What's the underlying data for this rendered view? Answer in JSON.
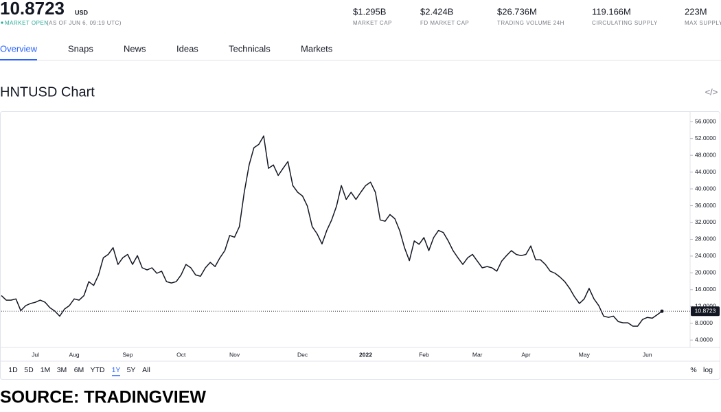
{
  "header": {
    "price": "10.8723",
    "currency": "USD",
    "status": "MARKET OPEN",
    "as_of": "(AS OF JUN 6, 09:19 UTC)"
  },
  "stats": [
    {
      "value": "$1.295B",
      "label": "MARKET CAP"
    },
    {
      "value": "$2.424B",
      "label": "FD MARKET CAP"
    },
    {
      "value": "$26.736M",
      "label": "TRADING VOLUME 24H"
    },
    {
      "value": "119.166M",
      "label": "CIRCULATING SUPPLY"
    },
    {
      "value": "223M",
      "label": "MAX SUPPLY"
    }
  ],
  "tabs": [
    "Overview",
    "Snaps",
    "News",
    "Ideas",
    "Technicals",
    "Markets"
  ],
  "chart_title": "HNTUSD Chart",
  "chart_data": {
    "type": "line",
    "color": "#131722",
    "categories": [
      null,
      null,
      null,
      null,
      null,
      null,
      null,
      "Jul",
      null,
      null,
      null,
      null,
      null,
      null,
      null,
      "Aug",
      null,
      null,
      null,
      null,
      null,
      null,
      null,
      null,
      null,
      null,
      "Sep",
      null,
      null,
      null,
      null,
      null,
      null,
      null,
      null,
      null,
      null,
      "Oct",
      null,
      null,
      null,
      null,
      null,
      null,
      null,
      null,
      null,
      null,
      "Nov",
      null,
      null,
      null,
      null,
      null,
      null,
      null,
      null,
      null,
      null,
      null,
      null,
      null,
      "Dec",
      null,
      null,
      null,
      null,
      null,
      null,
      null,
      null,
      null,
      null,
      null,
      null,
      "2022",
      null,
      null,
      null,
      null,
      null,
      null,
      null,
      null,
      null,
      null,
      null,
      "Feb",
      null,
      null,
      null,
      null,
      null,
      null,
      null,
      null,
      null,
      null,
      "Mar",
      null,
      null,
      null,
      null,
      null,
      null,
      null,
      null,
      null,
      "Apr",
      null,
      null,
      null,
      null,
      null,
      null,
      null,
      null,
      null,
      null,
      null,
      "May",
      null,
      null,
      null,
      null,
      null,
      null,
      null,
      null,
      null,
      null,
      null,
      null,
      "Jun",
      null,
      null,
      null
    ],
    "values": [
      14.6,
      13.5,
      13.5,
      13.8,
      11,
      12.2,
      12.7,
      13,
      13.5,
      13,
      11.7,
      10.9,
      9.7,
      11.4,
      12.2,
      13.8,
      13.5,
      14.6,
      17.9,
      17,
      19.5,
      23.6,
      24.4,
      26,
      22,
      23.6,
      24.4,
      22,
      24.1,
      21.2,
      20.7,
      21.2,
      19.9,
      20.4,
      17.9,
      17.6,
      17.9,
      19.5,
      22,
      21.2,
      19.5,
      19.2,
      21.2,
      22.5,
      21.5,
      23.6,
      25.3,
      28.9,
      28.5,
      31,
      39.2,
      45.7,
      49.8,
      50.6,
      52.6,
      44.9,
      45.7,
      43.2,
      44.9,
      46.5,
      40.8,
      39.2,
      38.3,
      35.9,
      31,
      29.3,
      26.9,
      30.1,
      32.6,
      35.9,
      40.8,
      37.5,
      39.2,
      37.5,
      39.2,
      40.8,
      41.6,
      39.2,
      32.6,
      32.3,
      33.9,
      32.9,
      30.1,
      26,
      22.9,
      27.6,
      26.8,
      28.4,
      25.3,
      28.4,
      30.1,
      29.6,
      27.6,
      25.3,
      23.6,
      22,
      23.6,
      24.4,
      22.8,
      21.2,
      21.5,
      21.2,
      20.4,
      22.8,
      24.1,
      25.3,
      24.4,
      24.1,
      24.4,
      26.4,
      23.1,
      23.1,
      22,
      20.4,
      19.9,
      19,
      17.9,
      16.3,
      14.3,
      12.7,
      13.8,
      16.3,
      13.8,
      12.2,
      9.7,
      9.4,
      9.7,
      8.4,
      8.1,
      8.1,
      7.3,
      7.3,
      8.9,
      9.4,
      9.2,
      10,
      10.8723
    ],
    "ylim": [
      2.4,
      58
    ],
    "yticks": [
      {
        "value": 4,
        "label": "4.0000"
      },
      {
        "value": 8,
        "label": "8.0000"
      },
      {
        "value": 12,
        "label": "12.0000"
      },
      {
        "value": 16,
        "label": "16.0000"
      },
      {
        "value": 20,
        "label": "20.0000"
      },
      {
        "value": 24,
        "label": "24.0000"
      },
      {
        "value": 28,
        "label": "28.0000"
      },
      {
        "value": 32,
        "label": "32.0000"
      },
      {
        "value": 36,
        "label": "36.0000"
      },
      {
        "value": 40,
        "label": "40.0000"
      },
      {
        "value": 44,
        "label": "44.0000"
      },
      {
        "value": 48,
        "label": "48.0000"
      },
      {
        "value": 52,
        "label": "52.0000"
      },
      {
        "value": 56,
        "label": "56.0000"
      }
    ],
    "grid": false
  },
  "ranges": [
    "1D",
    "5D",
    "1M",
    "3M",
    "6M",
    "YTD",
    "1Y",
    "5Y",
    "All"
  ],
  "scale_options": [
    "%",
    "log"
  ],
  "source": "SOURCE: TRADINGVIEW"
}
